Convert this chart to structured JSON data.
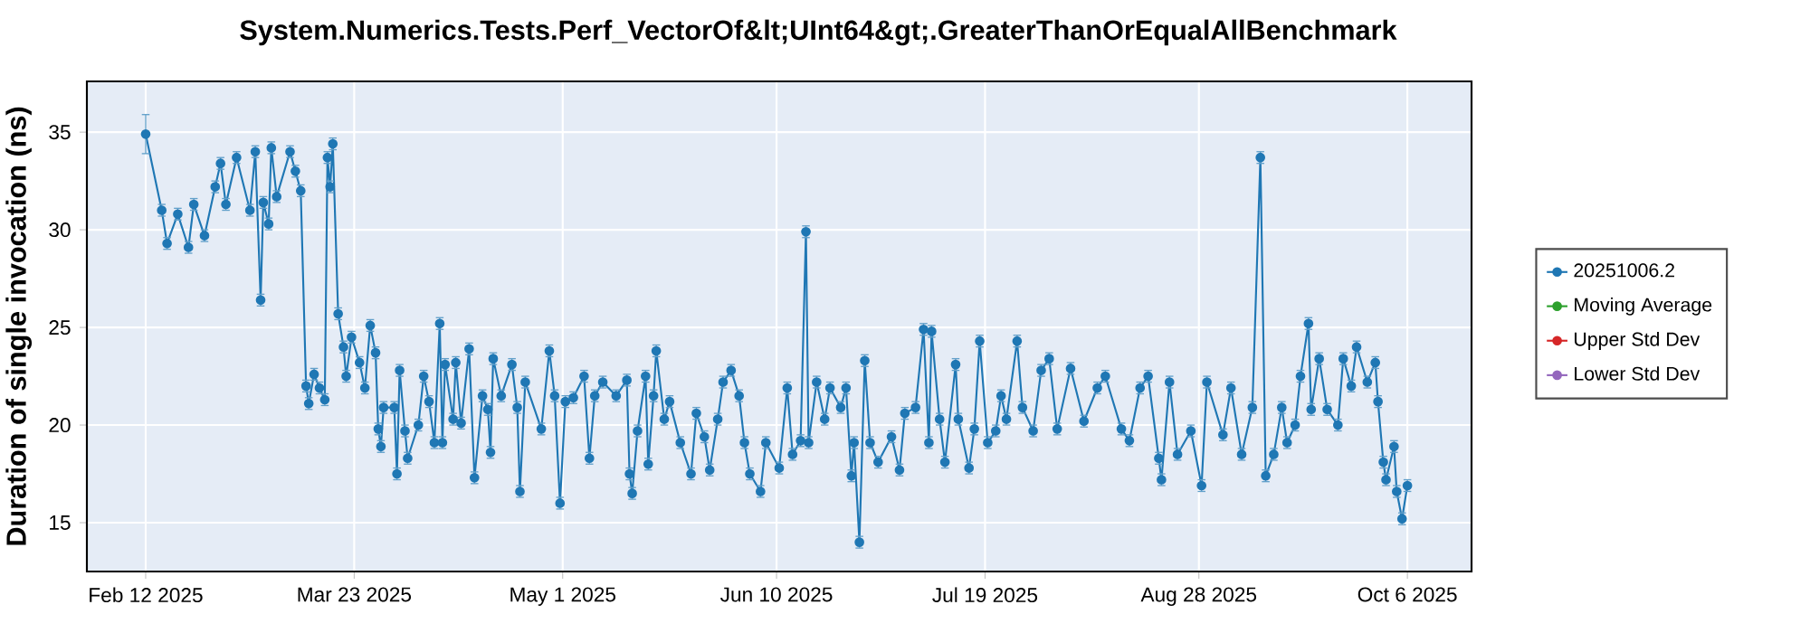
{
  "chart_data": {
    "type": "line",
    "title": "System.Numerics.Tests.Perf_VectorOf&lt;UInt64&gt;.GreaterThanOrEqualAllBenchmark",
    "ylabel": "Duration of single invocation (ns)",
    "series": [
      {
        "name": "20251006.2",
        "color": "#1f77b4",
        "x": [
          "2025-02-12",
          "2025-02-15",
          "2025-02-16",
          "2025-02-18",
          "2025-02-20",
          "2025-02-21",
          "2025-02-23",
          "2025-02-25",
          "2025-02-26",
          "2025-02-27",
          "2025-03-01",
          "2025-03-03T12:00",
          "2025-03-04T12:00",
          "2025-03-05T12:00",
          "2025-03-06",
          "2025-03-07",
          "2025-03-07T12:00",
          "2025-03-08T12:00",
          "2025-03-11",
          "2025-03-12",
          "2025-03-13",
          "2025-03-14",
          "2025-03-14T12:00",
          "2025-03-15T12:00",
          "2025-03-16T12:00",
          "2025-03-17T12:00",
          "2025-03-18",
          "2025-03-18T12:00",
          "2025-03-19",
          "2025-03-20",
          "2025-03-21",
          "2025-03-21T12:00",
          "2025-03-22T12:00",
          "2025-03-24",
          "2025-03-25",
          "2025-03-26",
          "2025-03-27",
          "2025-03-27T12:00",
          "2025-03-28",
          "2025-03-28T12:00",
          "2025-03-30T12:00",
          "2025-03-31",
          "2025-03-31T12:00",
          "2025-04-01T12:00",
          "2025-04-02",
          "2025-04-04",
          "2025-04-05",
          "2025-04-06",
          "2025-04-07",
          "2025-04-08",
          "2025-04-08T12:00",
          "2025-04-09",
          "2025-04-10T12:00",
          "2025-04-11",
          "2025-04-12",
          "2025-04-13T12:00",
          "2025-04-14T12:00",
          "2025-04-16",
          "2025-04-17",
          "2025-04-17T12:00",
          "2025-04-18",
          "2025-04-19T12:00",
          "2025-04-21T12:00",
          "2025-04-22T12:00",
          "2025-04-23",
          "2025-04-24",
          "2025-04-27",
          "2025-04-28T12:00",
          "2025-04-29T12:00",
          "2025-04-30T12:00",
          "2025-05-01T12:00",
          "2025-05-03",
          "2025-05-05",
          "2025-05-06",
          "2025-05-07",
          "2025-05-08T12:00",
          "2025-05-11",
          "2025-05-13",
          "2025-05-13T12:00",
          "2025-05-14",
          "2025-05-15",
          "2025-05-16T12:00",
          "2025-05-17",
          "2025-05-18",
          "2025-05-18T12:00",
          "2025-05-20",
          "2025-05-21",
          "2025-05-23",
          "2025-05-25",
          "2025-05-26",
          "2025-05-27T12:00",
          "2025-05-28T12:00",
          "2025-05-30",
          "2025-05-31",
          "2025-06-01T12:00",
          "2025-06-03",
          "2025-06-04",
          "2025-06-05",
          "2025-06-07",
          "2025-06-08",
          "2025-06-10T12:00",
          "2025-06-12",
          "2025-06-13",
          "2025-06-14T12:00",
          "2025-06-15T12:00",
          "2025-06-16",
          "2025-06-17T12:00",
          "2025-06-19",
          "2025-06-20",
          "2025-06-22",
          "2025-06-23",
          "2025-06-24",
          "2025-06-24T12:00",
          "2025-06-25T12:00",
          "2025-06-26T12:00",
          "2025-06-27T12:00",
          "2025-06-29",
          "2025-07-01T12:00",
          "2025-07-03",
          "2025-07-04",
          "2025-07-06",
          "2025-07-07T12:00",
          "2025-07-08T12:00",
          "2025-07-09",
          "2025-07-10T12:00",
          "2025-07-11T12:00",
          "2025-07-13T12:00",
          "2025-07-14",
          "2025-07-16",
          "2025-07-17",
          "2025-07-18",
          "2025-07-19T12:00",
          "2025-07-21",
          "2025-07-22",
          "2025-07-23",
          "2025-07-25",
          "2025-07-26",
          "2025-07-28",
          "2025-07-29T12:00",
          "2025-07-31",
          "2025-08-01T12:00",
          "2025-08-04",
          "2025-08-06T12:00",
          "2025-08-09",
          "2025-08-10T12:00",
          "2025-08-13T12:00",
          "2025-08-15",
          "2025-08-17",
          "2025-08-18T12:00",
          "2025-08-20T12:00",
          "2025-08-21",
          "2025-08-22T12:00",
          "2025-08-24",
          "2025-08-26T12:00",
          "2025-08-28T12:00",
          "2025-08-29T12:00",
          "2025-09-01T12:00",
          "2025-09-03",
          "2025-09-05",
          "2025-09-07",
          "2025-09-08T12:00",
          "2025-09-09T12:00",
          "2025-09-11",
          "2025-09-12T12:00",
          "2025-09-13T12:00",
          "2025-09-15",
          "2025-09-16",
          "2025-09-17T12:00",
          "2025-09-18",
          "2025-09-19T12:00",
          "2025-09-21",
          "2025-09-23",
          "2025-09-24",
          "2025-09-25T12:00",
          "2025-09-26T12:00",
          "2025-09-28T12:00",
          "2025-09-30",
          "2025-09-30T12:00",
          "2025-10-01T12:00",
          "2025-10-02",
          "2025-10-03T12:00",
          "2025-10-04",
          "2025-10-05",
          "2025-10-06"
        ],
        "values": [
          34.9,
          31.0,
          29.3,
          30.8,
          29.1,
          31.3,
          29.7,
          32.2,
          33.4,
          31.3,
          33.7,
          31.0,
          34.0,
          26.4,
          31.4,
          30.3,
          34.2,
          31.7,
          34.0,
          33.0,
          32.0,
          22.0,
          21.1,
          22.6,
          21.9,
          21.3,
          33.7,
          32.2,
          34.4,
          25.7,
          24.0,
          22.5,
          24.5,
          23.2,
          21.9,
          25.1,
          23.7,
          19.8,
          18.9,
          20.9,
          20.9,
          17.5,
          22.8,
          19.7,
          18.3,
          20.0,
          22.5,
          21.2,
          19.1,
          25.2,
          19.1,
          23.1,
          20.3,
          23.2,
          20.1,
          23.9,
          17.3,
          21.5,
          20.8,
          18.6,
          23.4,
          21.5,
          23.1,
          20.9,
          16.6,
          22.2,
          19.8,
          23.8,
          21.5,
          16.0,
          21.2,
          21.4,
          22.5,
          18.3,
          21.5,
          22.2,
          21.5,
          22.3,
          17.5,
          16.5,
          19.7,
          22.5,
          18.0,
          21.5,
          23.8,
          20.3,
          21.2,
          19.1,
          17.5,
          20.6,
          19.4,
          17.7,
          20.3,
          22.2,
          22.8,
          21.5,
          19.1,
          17.5,
          16.6,
          19.1,
          17.8,
          21.9,
          18.5,
          19.2,
          29.9,
          19.1,
          22.2,
          20.3,
          21.9,
          20.9,
          21.9,
          17.4,
          19.1,
          14.0,
          23.3,
          19.1,
          18.1,
          19.4,
          17.7,
          20.6,
          20.9,
          24.9,
          19.1,
          24.8,
          20.3,
          18.1,
          23.1,
          20.3,
          17.8,
          19.8,
          24.3,
          19.1,
          19.7,
          21.5,
          20.3,
          24.3,
          20.9,
          19.7,
          22.8,
          23.4,
          19.8,
          22.9,
          20.2,
          21.9,
          22.5,
          19.8,
          19.2,
          21.9,
          22.5,
          18.3,
          17.2,
          22.2,
          18.5,
          19.7,
          16.9,
          22.2,
          19.5,
          21.9,
          18.5,
          20.9,
          33.7,
          17.4,
          18.5,
          20.9,
          19.1,
          20.0,
          22.5,
          25.2,
          20.8,
          23.4,
          20.8,
          20.0,
          23.4,
          22.0,
          24.0,
          22.2,
          23.2,
          21.2,
          18.1,
          17.2,
          18.9,
          16.6,
          15.2,
          16.9
        ],
        "errors": [
          1.0,
          0.3,
          0.3,
          0.3,
          0.3,
          0.3,
          0.3,
          0.3,
          0.3,
          0.3,
          0.3,
          0.3,
          0.3,
          0.3,
          0.3,
          0.3,
          0.3,
          0.3,
          0.3,
          0.3,
          0.3,
          0.3,
          0.3,
          0.3,
          0.3,
          0.3,
          0.3,
          0.3,
          0.3,
          0.3,
          0.3,
          0.3,
          0.3,
          0.3,
          0.3,
          0.3,
          0.3,
          0.3,
          0.3,
          0.3,
          0.3,
          0.3,
          0.3,
          0.3,
          0.3,
          0.3,
          0.3,
          0.3,
          0.3,
          0.3,
          0.3,
          0.3,
          0.3,
          0.3,
          0.3,
          0.3,
          0.3,
          0.3,
          0.3,
          0.3,
          0.3,
          0.3,
          0.3,
          0.3,
          0.3,
          0.3,
          0.3,
          0.3,
          0.3,
          0.3,
          0.3,
          0.3,
          0.3,
          0.3,
          0.3,
          0.3,
          0.3,
          0.3,
          0.3,
          0.3,
          0.3,
          0.3,
          0.3,
          0.3,
          0.3,
          0.3,
          0.3,
          0.3,
          0.3,
          0.3,
          0.3,
          0.3,
          0.3,
          0.3,
          0.3,
          0.3,
          0.3,
          0.3,
          0.3,
          0.3,
          0.3,
          0.3,
          0.3,
          0.3,
          0.3,
          0.3,
          0.3,
          0.3,
          0.3,
          0.3,
          0.3,
          0.3,
          0.3,
          0.3,
          0.3,
          0.3,
          0.3,
          0.3,
          0.3,
          0.3,
          0.3,
          0.3,
          0.3,
          0.3,
          0.3,
          0.3,
          0.3,
          0.3,
          0.3,
          0.3,
          0.3,
          0.3,
          0.3,
          0.3,
          0.3,
          0.3,
          0.3,
          0.3,
          0.3,
          0.3,
          0.3,
          0.3,
          0.3,
          0.3,
          0.3,
          0.3,
          0.3,
          0.3,
          0.3,
          0.3,
          0.3,
          0.3,
          0.3,
          0.3,
          0.3,
          0.3,
          0.3,
          0.3,
          0.3,
          0.3,
          0.3,
          0.3,
          0.3,
          0.3,
          0.3,
          0.3,
          0.3,
          0.3,
          0.3,
          0.3,
          0.3,
          0.3,
          0.3,
          0.3,
          0.3,
          0.3,
          0.3,
          0.3,
          0.3,
          0.3,
          0.3,
          0.3,
          0.3,
          0.3
        ]
      },
      {
        "name": "Moving Average",
        "color": "#2ca02c"
      },
      {
        "name": "Upper Std Dev",
        "color": "#d62728"
      },
      {
        "name": "Lower Std Dev",
        "color": "#9467bd"
      }
    ],
    "xlim": [
      "2025-02-01",
      "2025-10-18"
    ],
    "xticks": [
      {
        "value": "2025-02-12",
        "label": "Feb 12 2025"
      },
      {
        "value": "2025-03-23",
        "label": "Mar 23 2025"
      },
      {
        "value": "2025-05-01",
        "label": "May 1 2025"
      },
      {
        "value": "2025-06-10",
        "label": "Jun 10 2025"
      },
      {
        "value": "2025-07-19",
        "label": "Jul 19 2025"
      },
      {
        "value": "2025-08-28",
        "label": "Aug 28 2025"
      },
      {
        "value": "2025-10-06",
        "label": "Oct 6 2025"
      }
    ],
    "ylim": [
      12.5,
      37.6
    ],
    "yticks": [
      15,
      20,
      25,
      30,
      35
    ],
    "grid": true,
    "legend": "right",
    "marker": "circle",
    "line_style": "solid"
  }
}
